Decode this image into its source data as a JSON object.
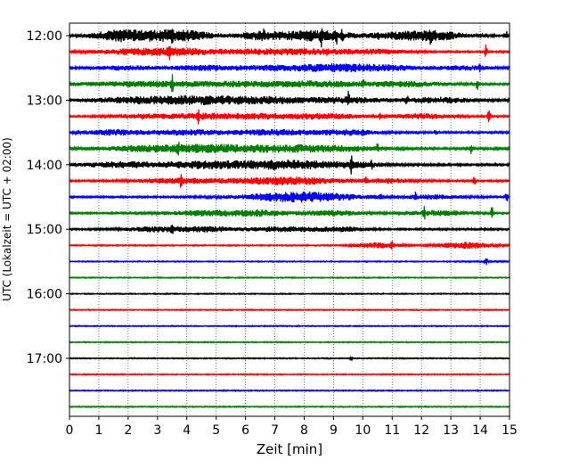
{
  "chart_data": {
    "type": "line",
    "title": "",
    "xlabel": "Zeit  [min]",
    "ylabel": "UTC (Lokalzeit = UTC + 02:00)",
    "xlim": [
      0,
      15
    ],
    "x_ticks": [
      "0",
      "1",
      "2",
      "3",
      "4",
      "5",
      "6",
      "7",
      "8",
      "9",
      "10",
      "11",
      "12",
      "13",
      "14",
      "15"
    ],
    "y_ticks": [
      {
        "label": "12:00",
        "trace": 0
      },
      {
        "label": "13:00",
        "trace": 4
      },
      {
        "label": "14:00",
        "trace": 8
      },
      {
        "label": "15:00",
        "trace": 12
      },
      {
        "label": "16:00",
        "trace": 16
      },
      {
        "label": "17:00",
        "trace": 20
      }
    ],
    "grid": "vertical dotted",
    "colors": [
      "#000000",
      "#ff0000",
      "#0000ff",
      "#008000"
    ],
    "traces": [
      {
        "start": "12:00",
        "color": "#000000",
        "noise": 1.2,
        "bursts": [
          [
            1.5,
            1.5,
            3
          ],
          [
            2.2,
            2.5,
            3
          ],
          [
            3.2,
            2.5,
            3
          ],
          [
            4.1,
            2,
            3
          ],
          [
            6.5,
            1.5,
            3
          ],
          [
            7.8,
            2.8,
            3
          ],
          [
            8.6,
            2,
            3
          ],
          [
            11.5,
            3,
            3
          ],
          [
            12.5,
            2.2,
            3
          ]
        ],
        "spikes": [
          [
            3.5,
            4
          ],
          [
            6.6,
            4
          ],
          [
            8.6,
            8
          ],
          [
            9.1,
            6
          ],
          [
            9.3,
            5
          ],
          [
            10.5,
            4
          ],
          [
            12.3,
            5
          ],
          [
            14.9,
            5
          ]
        ]
      },
      {
        "start": "12:15",
        "color": "#ff0000",
        "noise": 1.0,
        "bursts": [
          [
            2.2,
            3,
            2.5
          ],
          [
            3.8,
            2.5,
            3
          ],
          [
            6.3,
            3,
            2.2
          ],
          [
            8.3,
            3,
            2.5
          ],
          [
            10.5,
            2,
            2.2
          ]
        ],
        "spikes": [
          [
            3.4,
            6
          ],
          [
            8.8,
            4
          ],
          [
            14.2,
            8
          ]
        ]
      },
      {
        "start": "12:30",
        "color": "#0000ff",
        "noise": 1.0,
        "bursts": [
          [
            2,
            2.5,
            2
          ],
          [
            4.5,
            2,
            2.2
          ],
          [
            7.6,
            4.5,
            3
          ],
          [
            9.5,
            2.5,
            2
          ],
          [
            11,
            2.5,
            2
          ],
          [
            13.5,
            2,
            2
          ]
        ],
        "spikes": [
          [
            9.0,
            4
          ],
          [
            14.0,
            4
          ]
        ]
      },
      {
        "start": "12:45",
        "color": "#008000",
        "noise": 1.2,
        "bursts": [
          [
            2.5,
            4,
            2.5
          ],
          [
            5.5,
            3.2,
            2
          ],
          [
            8.4,
            3.5,
            3
          ],
          [
            11.5,
            2.5,
            2.5
          ]
        ],
        "spikes": [
          [
            3.5,
            8
          ],
          [
            10.0,
            6
          ],
          [
            13.9,
            6
          ]
        ]
      },
      {
        "start": "13:00",
        "color": "#000000",
        "noise": 1.3,
        "bursts": [
          [
            2.5,
            3.5,
            3
          ],
          [
            4.6,
            3,
            3
          ],
          [
            6.8,
            3.2,
            3
          ],
          [
            9.5,
            2.5,
            2.5
          ],
          [
            12.5,
            2.5,
            2.5
          ]
        ],
        "spikes": [
          [
            9.5,
            8
          ],
          [
            11.5,
            4
          ]
        ]
      },
      {
        "start": "13:15",
        "color": "#ff0000",
        "noise": 1.0,
        "bursts": [
          [
            2.5,
            2,
            2
          ],
          [
            4.5,
            2.5,
            2.5
          ],
          [
            6.5,
            3,
            2.5
          ],
          [
            8.8,
            2.5,
            2.5
          ],
          [
            12,
            2,
            2.5
          ]
        ],
        "spikes": [
          [
            4.4,
            6
          ],
          [
            10.6,
            4
          ],
          [
            14.3,
            8
          ]
        ]
      },
      {
        "start": "13:30",
        "color": "#0000ff",
        "noise": 1.1,
        "bursts": [
          [
            1.5,
            2,
            2.5
          ],
          [
            4,
            2.8,
            2.5
          ],
          [
            7,
            3,
            2.8
          ],
          [
            9.5,
            2,
            2.5
          ]
        ],
        "spikes": [
          [
            10.0,
            5
          ],
          [
            12.5,
            3
          ]
        ]
      },
      {
        "start": "13:45",
        "color": "#008000",
        "noise": 1.2,
        "bursts": [
          [
            2.8,
            3.5,
            3
          ],
          [
            4.8,
            2.5,
            2.5
          ],
          [
            6.8,
            3.5,
            3
          ],
          [
            9,
            3,
            2.5
          ]
        ],
        "spikes": [
          [
            3.7,
            6
          ],
          [
            4.8,
            4
          ],
          [
            10.5,
            5
          ],
          [
            13.7,
            6
          ]
        ]
      },
      {
        "start": "14:00",
        "color": "#000000",
        "noise": 1.2,
        "bursts": [
          [
            2.1,
            3.2,
            3
          ],
          [
            4.5,
            2,
            2.5
          ],
          [
            6.5,
            4,
            3
          ],
          [
            7.8,
            3.5,
            2.5
          ],
          [
            9.8,
            2,
            2
          ]
        ],
        "spikes": [
          [
            9.6,
            8
          ],
          [
            10.3,
            3
          ]
        ]
      },
      {
        "start": "14:15",
        "color": "#ff0000",
        "noise": 1.0,
        "bursts": [
          [
            3.5,
            2.5,
            2.5
          ],
          [
            6.4,
            3.5,
            2.5
          ],
          [
            8,
            3,
            2.5
          ],
          [
            11,
            2,
            2
          ]
        ],
        "spikes": [
          [
            3.8,
            6
          ],
          [
            10.1,
            4
          ],
          [
            13.8,
            7
          ]
        ]
      },
      {
        "start": "14:30",
        "color": "#0000ff",
        "noise": 1.0,
        "bursts": [
          [
            7.3,
            3.5,
            3
          ],
          [
            8.5,
            3.5,
            3
          ],
          [
            12.5,
            2,
            2
          ]
        ],
        "spikes": [
          [
            10.6,
            3
          ],
          [
            11.8,
            4
          ],
          [
            14.9,
            7
          ]
        ]
      },
      {
        "start": "14:45",
        "color": "#008000",
        "noise": 1.0,
        "bursts": [
          [
            4.5,
            2.5,
            2.5
          ],
          [
            6.5,
            2.5,
            3
          ],
          [
            9,
            2,
            2.5
          ],
          [
            12.5,
            2.2,
            2.5
          ]
        ],
        "spikes": [
          [
            12.1,
            5
          ],
          [
            14.4,
            7
          ]
        ]
      },
      {
        "start": "15:00",
        "color": "#000000",
        "noise": 1.0,
        "bursts": [
          [
            3,
            2.2,
            2.5
          ],
          [
            4.8,
            1.8,
            2.5
          ],
          [
            7.3,
            2.5,
            2.5
          ],
          [
            9.3,
            1.8,
            2.2
          ]
        ],
        "spikes": [
          [
            3.5,
            4
          ]
        ]
      },
      {
        "start": "15:15",
        "color": "#ff0000",
        "noise": 0.7,
        "bursts": [
          [
            10.5,
            1.5,
            3
          ],
          [
            13.5,
            2,
            3.5
          ]
        ],
        "spikes": [
          [
            11.0,
            3
          ]
        ]
      },
      {
        "start": "15:30",
        "color": "#0000ff",
        "noise": 0.6,
        "bursts": [
          [
            14.2,
            2,
            0.3
          ]
        ],
        "spikes": [
          [
            14.2,
            5
          ]
        ]
      },
      {
        "start": "15:45",
        "color": "#008000",
        "noise": 0.6,
        "bursts": [],
        "spikes": []
      },
      {
        "start": "16:00",
        "color": "#000000",
        "noise": 0.6,
        "bursts": [],
        "spikes": []
      },
      {
        "start": "16:15",
        "color": "#ff0000",
        "noise": 0.6,
        "bursts": [],
        "spikes": []
      },
      {
        "start": "16:30",
        "color": "#0000ff",
        "noise": 0.6,
        "bursts": [],
        "spikes": []
      },
      {
        "start": "16:45",
        "color": "#008000",
        "noise": 0.6,
        "bursts": [],
        "spikes": []
      },
      {
        "start": "17:00",
        "color": "#000000",
        "noise": 0.6,
        "bursts": [],
        "spikes": [
          [
            9.6,
            2
          ]
        ]
      },
      {
        "start": "17:15",
        "color": "#ff0000",
        "noise": 0.6,
        "bursts": [],
        "spikes": []
      },
      {
        "start": "17:30",
        "color": "#0000ff",
        "noise": 0.6,
        "bursts": [],
        "spikes": []
      },
      {
        "start": "17:45",
        "color": "#008000",
        "noise": 0.6,
        "bursts": [],
        "spikes": []
      }
    ]
  }
}
